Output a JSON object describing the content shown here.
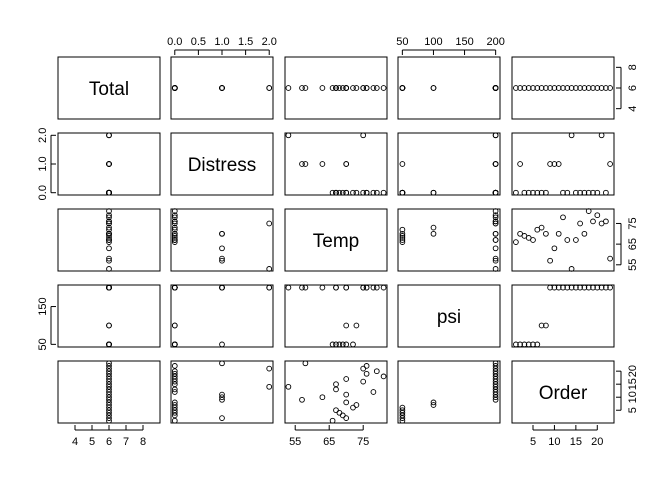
{
  "chart_data": {
    "type": "scatter-matrix",
    "variables": [
      {
        "name": "Total",
        "lim": [
          3,
          9
        ],
        "ticks": [
          4,
          6,
          8
        ],
        "tick_labels": [
          "4",
          "6",
          "8"
        ],
        "tick_labels_bottom": [
          "4",
          "5",
          "6",
          "7",
          "8"
        ],
        "ticks_bottom": [
          4,
          5,
          6,
          7,
          8
        ]
      },
      {
        "name": "Distress",
        "lim": [
          -0.08,
          2.08
        ],
        "ticks": [
          0,
          0.5,
          1,
          1.5,
          2
        ],
        "tick_labels": [
          "0.0",
          "0.5",
          "1.0",
          "1.5",
          "2.0"
        ],
        "ticks_left": [
          0,
          1,
          2
        ],
        "tick_labels_left": [
          "0.0",
          "1.0",
          "2.0"
        ]
      },
      {
        "name": "Temp",
        "lim": [
          52,
          82
        ],
        "ticks": [
          55,
          65,
          75
        ],
        "tick_labels": [
          "55",
          "65",
          "75"
        ]
      },
      {
        "name": "psi",
        "lim": [
          43,
          207
        ],
        "ticks": [
          50,
          100,
          150,
          200
        ],
        "tick_labels": [
          "50",
          "100",
          "150",
          "200"
        ],
        "ticks_left": [
          50,
          150
        ],
        "tick_labels_left": [
          "50",
          "150"
        ]
      },
      {
        "name": "Order",
        "lim": [
          0.1,
          23.9
        ],
        "ticks": [
          5,
          10,
          15,
          20
        ],
        "tick_labels": [
          "5",
          "10",
          "15",
          "20"
        ],
        "ticks_left": [
          5,
          10,
          15
        ],
        "tick_labels_left": [
          "5",
          "10",
          "15"
        ]
      }
    ],
    "records": [
      {
        "Total": 6,
        "Distress": 0,
        "Temp": 66,
        "psi": 50,
        "Order": 1
      },
      {
        "Total": 6,
        "Distress": 1,
        "Temp": 70,
        "psi": 50,
        "Order": 2
      },
      {
        "Total": 6,
        "Distress": 0,
        "Temp": 69,
        "psi": 50,
        "Order": 3
      },
      {
        "Total": 6,
        "Distress": 0,
        "Temp": 68,
        "psi": 50,
        "Order": 4
      },
      {
        "Total": 6,
        "Distress": 0,
        "Temp": 67,
        "psi": 50,
        "Order": 5
      },
      {
        "Total": 6,
        "Distress": 0,
        "Temp": 72,
        "psi": 50,
        "Order": 6
      },
      {
        "Total": 6,
        "Distress": 0,
        "Temp": 73,
        "psi": 100,
        "Order": 7
      },
      {
        "Total": 6,
        "Distress": 0,
        "Temp": 70,
        "psi": 100,
        "Order": 8
      },
      {
        "Total": 6,
        "Distress": 1,
        "Temp": 57,
        "psi": 200,
        "Order": 9
      },
      {
        "Total": 6,
        "Distress": 1,
        "Temp": 63,
        "psi": 200,
        "Order": 10
      },
      {
        "Total": 6,
        "Distress": 1,
        "Temp": 70,
        "psi": 200,
        "Order": 11
      },
      {
        "Total": 6,
        "Distress": 0,
        "Temp": 78,
        "psi": 200,
        "Order": 12
      },
      {
        "Total": 6,
        "Distress": 0,
        "Temp": 67,
        "psi": 200,
        "Order": 13
      },
      {
        "Total": 6,
        "Distress": 2,
        "Temp": 53,
        "psi": 200,
        "Order": 14
      },
      {
        "Total": 6,
        "Distress": 0,
        "Temp": 67,
        "psi": 200,
        "Order": 15
      },
      {
        "Total": 6,
        "Distress": 0,
        "Temp": 75,
        "psi": 200,
        "Order": 16
      },
      {
        "Total": 6,
        "Distress": 0,
        "Temp": 70,
        "psi": 200,
        "Order": 17
      },
      {
        "Total": 6,
        "Distress": 0,
        "Temp": 81,
        "psi": 200,
        "Order": 18
      },
      {
        "Total": 6,
        "Distress": 0,
        "Temp": 76,
        "psi": 200,
        "Order": 19
      },
      {
        "Total": 6,
        "Distress": 0,
        "Temp": 79,
        "psi": 200,
        "Order": 20
      },
      {
        "Total": 6,
        "Distress": 2,
        "Temp": 75,
        "psi": 200,
        "Order": 21
      },
      {
        "Total": 6,
        "Distress": 0,
        "Temp": 76,
        "psi": 200,
        "Order": 22
      },
      {
        "Total": 6,
        "Distress": 1,
        "Temp": 58,
        "psi": 200,
        "Order": 23
      }
    ]
  }
}
